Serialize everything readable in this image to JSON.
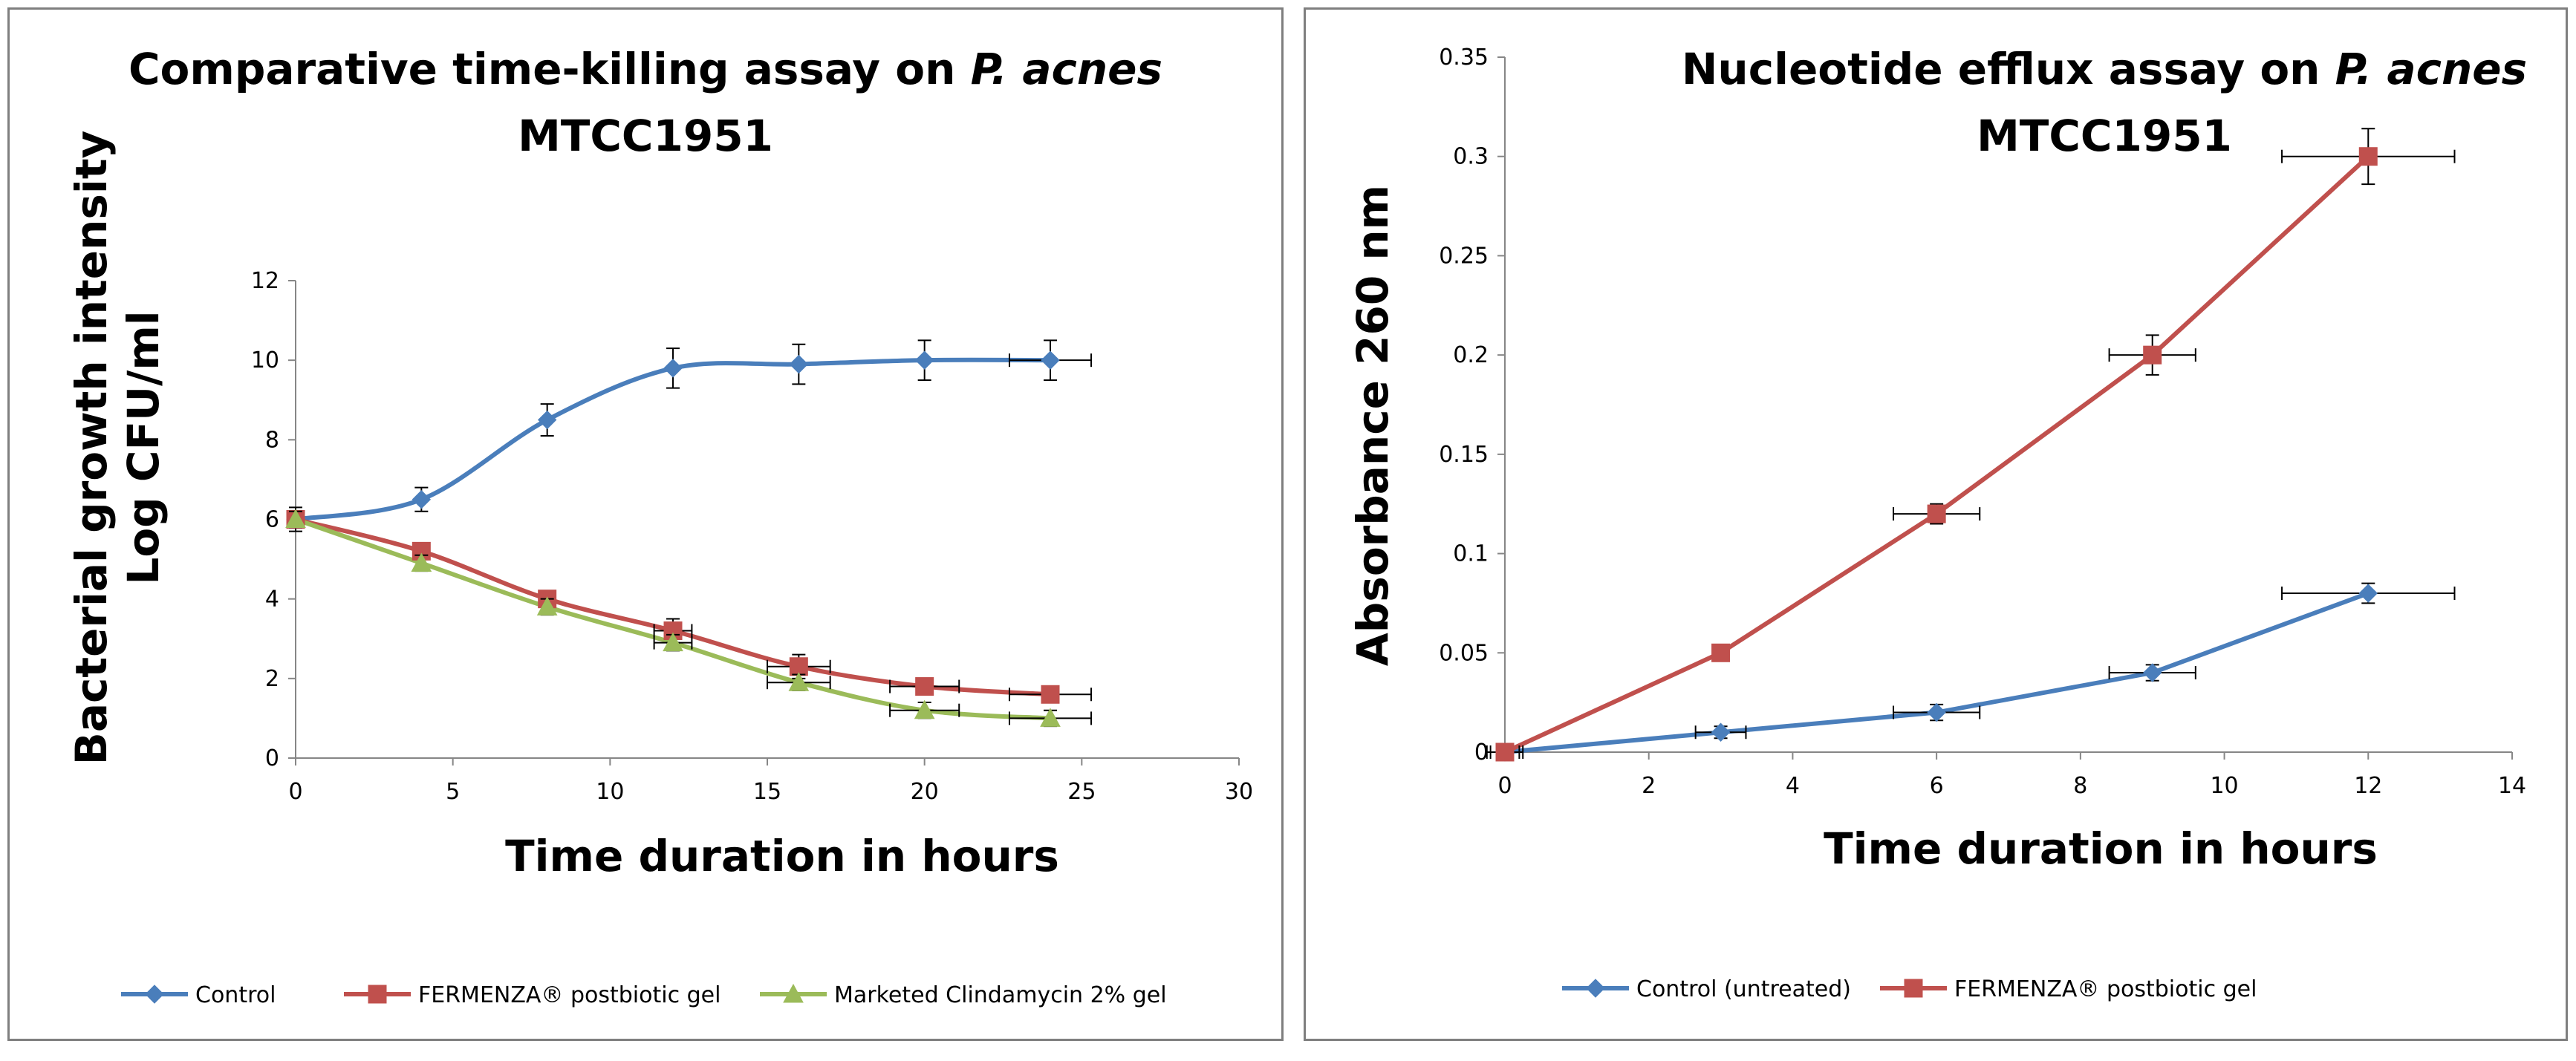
{
  "chart_data": [
    {
      "type": "line",
      "title_line1": "Comparative time-killing assay on ",
      "title_italic": "P. acnes",
      "title_line2": "MTCC1951",
      "xlabel": "Time duration in hours",
      "ylabel_line1": "Bacterial growth intensity",
      "ylabel_line2": "Log CFU/ml",
      "xlim": [
        0,
        30
      ],
      "ylim": [
        0,
        12
      ],
      "xticks": [
        "0",
        "5",
        "10",
        "15",
        "20",
        "25",
        "30"
      ],
      "yticks": [
        "0",
        "2",
        "4",
        "6",
        "8",
        "10",
        "12"
      ],
      "legend_position": "bottom",
      "series": [
        {
          "name": "Control",
          "color": "#4a7ebb",
          "marker": "diamond",
          "x": [
            0,
            4,
            8,
            12,
            16,
            20,
            24
          ],
          "values": [
            6.0,
            6.5,
            8.5,
            9.8,
            9.9,
            10.0,
            10.0
          ],
          "yerr": [
            0.3,
            0.3,
            0.4,
            0.5,
            0.5,
            0.5,
            0.5
          ],
          "xerr": [
            0,
            0,
            0,
            0,
            0,
            0,
            1.3
          ]
        },
        {
          "name": "FERMENZA® postbiotic gel",
          "color": "#c0504d",
          "marker": "square",
          "x": [
            0,
            4,
            8,
            12,
            16,
            20,
            24
          ],
          "values": [
            6.0,
            5.2,
            4.0,
            3.2,
            2.3,
            1.8,
            1.6
          ],
          "yerr": [
            0.2,
            0.2,
            0.2,
            0.3,
            0.3,
            0.2,
            0.2
          ],
          "xerr": [
            0,
            0,
            0,
            0.6,
            1.0,
            1.1,
            1.3
          ]
        },
        {
          "name": "Marketed Clindamycin 2% gel",
          "color": "#9bbb59",
          "marker": "triangle",
          "x": [
            0,
            4,
            8,
            12,
            16,
            20,
            24
          ],
          "values": [
            6.0,
            4.9,
            3.8,
            2.9,
            1.9,
            1.2,
            1.0
          ],
          "yerr": [
            0.2,
            0.2,
            0.2,
            0.2,
            0.2,
            0.2,
            0.2
          ],
          "xerr": [
            0,
            0,
            0,
            0.6,
            1.0,
            1.1,
            1.3
          ]
        }
      ]
    },
    {
      "type": "line",
      "title_line1": "Nucleotide efflux assay on ",
      "title_italic": "P. acnes",
      "title_line2": "MTCC1951",
      "xlabel": "Time duration in hours",
      "ylabel": "Absorbance 260 nm",
      "xlim": [
        0,
        14
      ],
      "ylim": [
        0,
        0.35
      ],
      "xticks": [
        "0",
        "2",
        "4",
        "6",
        "8",
        "10",
        "12",
        "14"
      ],
      "yticks": [
        "0",
        "0.05",
        "0.1",
        "0.15",
        "0.2",
        "0.25",
        "0.3",
        "0.35"
      ],
      "legend_position": "bottom",
      "series": [
        {
          "name": "Control (untreated)",
          "color": "#4a7ebb",
          "marker": "diamond",
          "x": [
            0,
            3,
            6,
            9,
            12
          ],
          "values": [
            0.0,
            0.01,
            0.02,
            0.04,
            0.08
          ],
          "yerr": [
            0.003,
            0.003,
            0.004,
            0.004,
            0.005
          ],
          "xerr": [
            0.25,
            0.35,
            0.6,
            0.6,
            1.2
          ]
        },
        {
          "name": "FERMENZA® postbiotic gel",
          "color": "#c0504d",
          "marker": "square",
          "x": [
            0,
            3,
            6,
            9,
            12
          ],
          "values": [
            0.0,
            0.05,
            0.12,
            0.2,
            0.3
          ],
          "yerr": [
            0.002,
            0.004,
            0.005,
            0.01,
            0.014
          ],
          "xerr": [
            0.2,
            0.0,
            0.6,
            0.6,
            1.2
          ]
        }
      ]
    }
  ]
}
